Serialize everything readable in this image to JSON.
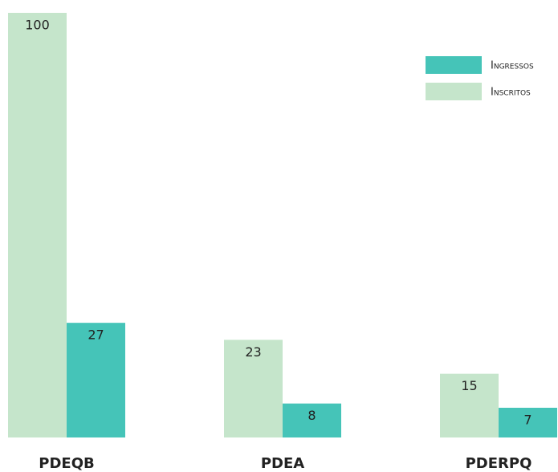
{
  "chart_data": {
    "type": "bar",
    "categories": [
      "PDEQB",
      "PDEA",
      "PDERPQ"
    ],
    "series": [
      {
        "name": "Inscritos",
        "color": "#c5e5cb",
        "values": [
          100,
          23,
          15
        ]
      },
      {
        "name": "Ingressos",
        "color": "#45c4b8",
        "values": [
          27,
          8,
          7
        ]
      }
    ],
    "ylim": [
      0,
      100
    ],
    "legend": "top-right"
  }
}
